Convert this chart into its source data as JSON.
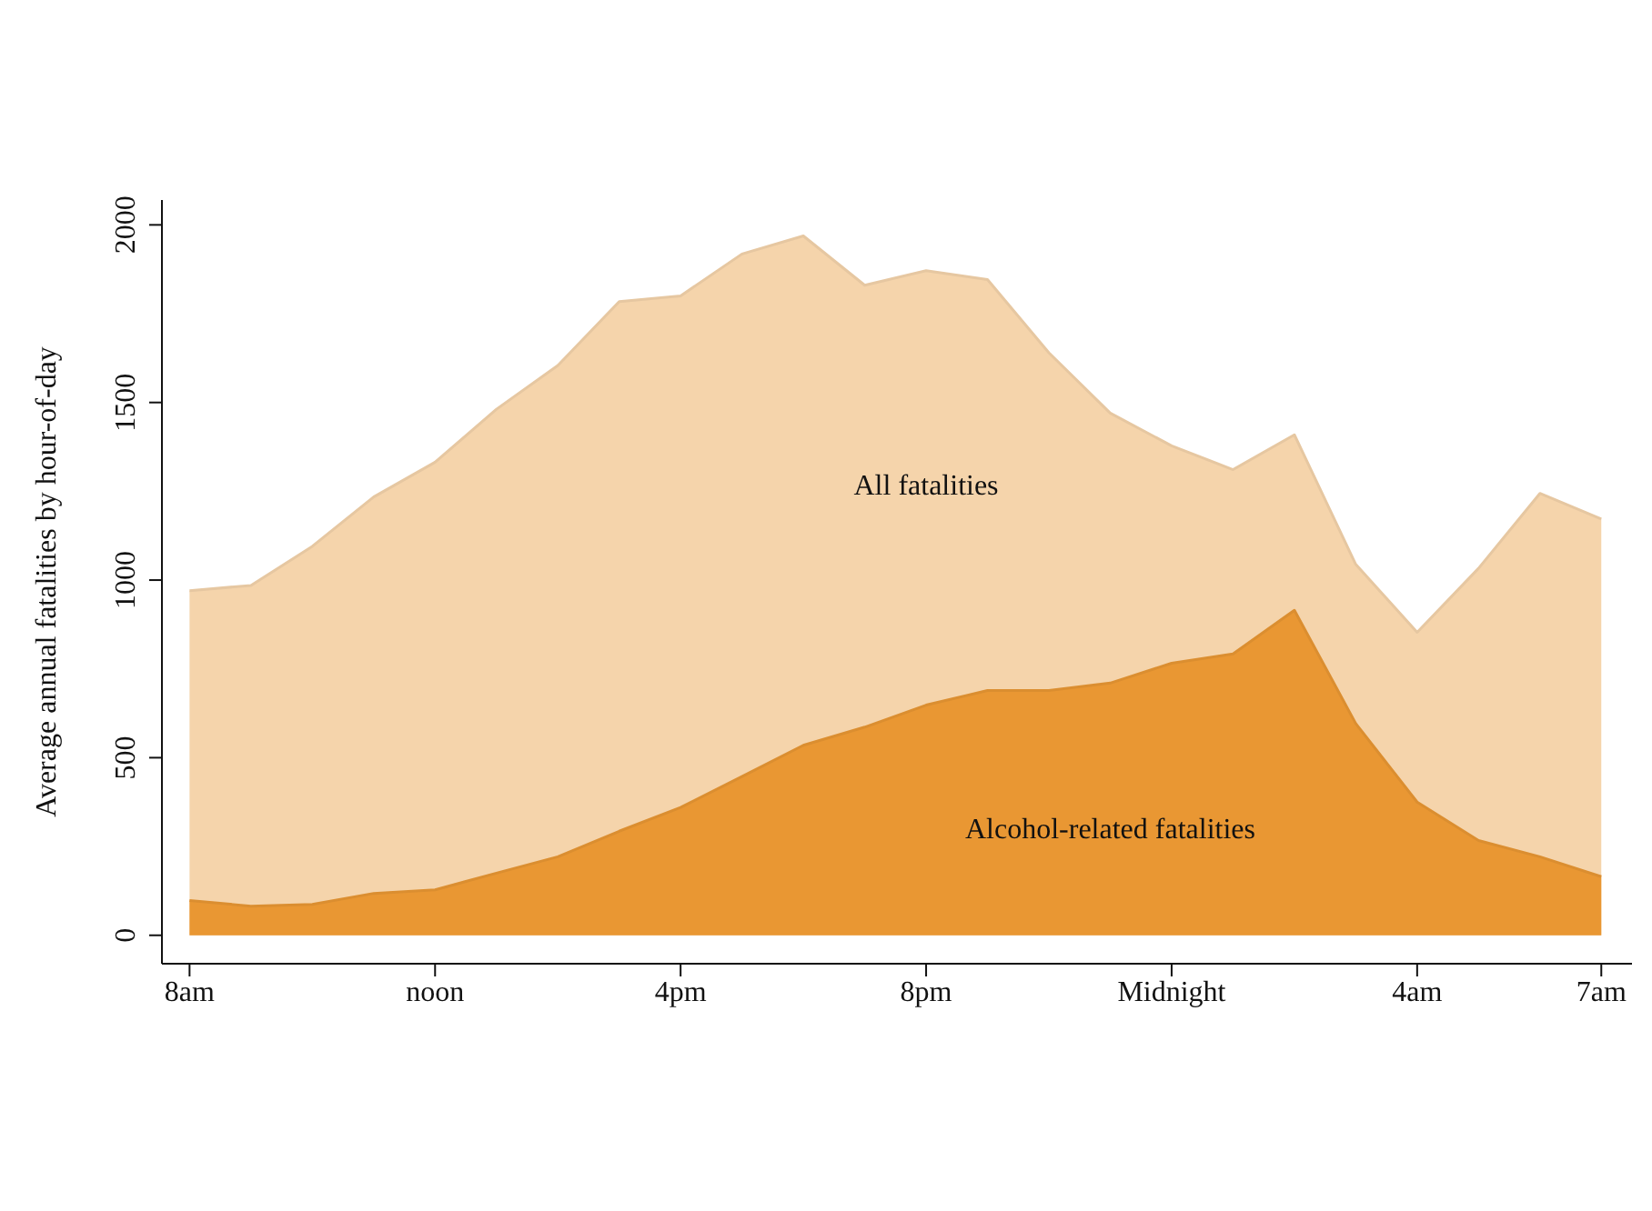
{
  "chart_data": {
    "type": "area",
    "ylabel": "Average annual fatalities by hour-of-day",
    "categories": [
      "8am",
      null,
      null,
      null,
      "noon",
      null,
      null,
      null,
      "4pm",
      null,
      null,
      null,
      "8pm",
      null,
      null,
      null,
      "Midnight",
      null,
      null,
      null,
      "4am",
      null,
      null,
      "7am"
    ],
    "ylim": [
      -80,
      2070
    ],
    "yticks": [
      0,
      500,
      1000,
      1500,
      2000
    ],
    "series": [
      {
        "name": "All fatalities",
        "color": "#f5d4ab",
        "values": [
          970,
          985,
          1095,
          1234,
          1332,
          1481,
          1604,
          1784,
          1800,
          1918,
          1969,
          1830,
          1871,
          1846,
          1640,
          1470,
          1378,
          1311,
          1409,
          1044,
          853,
          1033,
          1244,
          1172
        ]
      },
      {
        "name": "Alcohol-related fatalities",
        "color": "#e99733",
        "values": [
          98,
          82,
          87,
          118,
          128,
          175,
          221,
          293,
          360,
          447,
          535,
          586,
          648,
          689,
          689,
          710,
          766,
          792,
          915,
          596,
          375,
          267,
          221,
          165
        ]
      }
    ]
  }
}
